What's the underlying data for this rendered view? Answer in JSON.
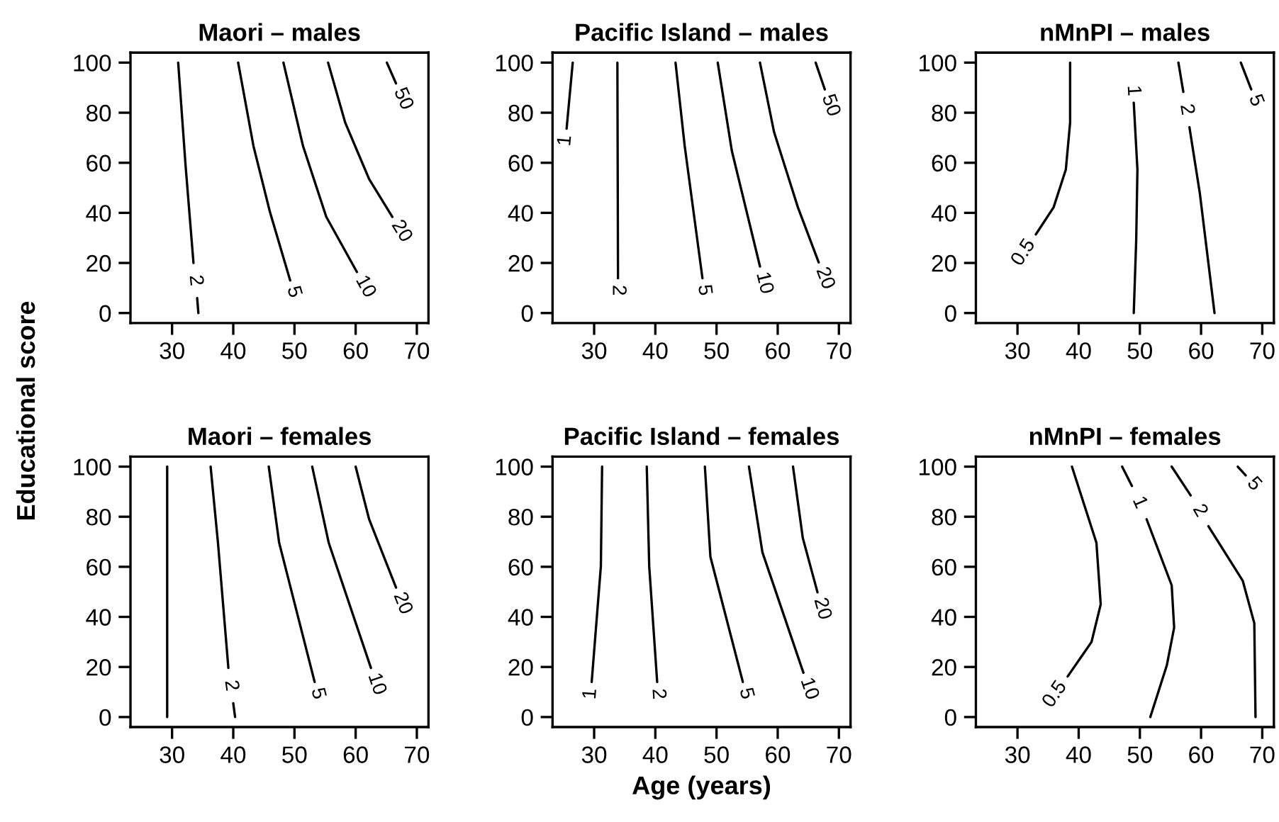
{
  "chart_data": [
    {
      "type": "line",
      "title": "Maori – males",
      "ylabel": "Educational score",
      "xlim": [
        23.2,
        71.9
      ],
      "ylim": [
        -4,
        104
      ],
      "xticks": [
        30,
        40,
        50,
        60,
        70
      ],
      "yticks": [
        0,
        20,
        40,
        60,
        80,
        100
      ],
      "grid": false,
      "annotations": [
        "2",
        "5",
        "10",
        "20",
        "50"
      ],
      "series": [
        {
          "color": "#000000",
          "x": [
            31.0,
            32.2,
            33.5,
            null,
            34.1,
            34.3
          ],
          "values": [
            100,
            59.1,
            20,
            null,
            6,
            0
          ]
        },
        {
          "color": "#000000",
          "x": [
            40.8,
            43.3,
            46.0,
            49.3
          ],
          "values": [
            100,
            66.7,
            40.3,
            13
          ]
        },
        {
          "color": "#000000",
          "x": [
            48.2,
            51.4,
            55.2,
            60.2
          ],
          "values": [
            100,
            66.7,
            38.4,
            16.4
          ]
        },
        {
          "color": "#000000",
          "x": [
            55.5,
            58.3,
            62.2,
            66.0
          ],
          "values": [
            100,
            76,
            53.5,
            38.4
          ]
        },
        {
          "color": "#000000",
          "x": [
            65.1,
            66.6
          ],
          "values": [
            100,
            91.7
          ]
        }
      ]
    },
    {
      "type": "line",
      "title": "Pacific Island – males",
      "xlim": [
        23.2,
        71.9
      ],
      "ylim": [
        -4,
        104
      ],
      "xticks": [
        30,
        40,
        50,
        60,
        70
      ],
      "yticks": [
        0,
        20,
        40,
        60,
        80,
        100
      ],
      "grid": false,
      "annotations": [
        "1",
        "2",
        "5",
        "10",
        "20",
        "50"
      ],
      "series": [
        {
          "color": "#000000",
          "x": [
            26.5,
            25.5
          ],
          "values": [
            100,
            73.6
          ]
        },
        {
          "color": "#000000",
          "x": [
            33.8,
            33.9
          ],
          "values": [
            100,
            13.9
          ]
        },
        {
          "color": "#000000",
          "x": [
            43.3,
            44.8,
            47.7
          ],
          "values": [
            100,
            66.7,
            13.9
          ]
        },
        {
          "color": "#000000",
          "x": [
            50.2,
            52.5,
            57.1
          ],
          "values": [
            100,
            64.8,
            18.6
          ]
        },
        {
          "color": "#000000",
          "x": [
            57.1,
            59.4,
            63.3,
            66.7
          ],
          "values": [
            100,
            72.3,
            42.2,
            20.2
          ]
        },
        {
          "color": "#000000",
          "x": [
            66.2,
            67.7
          ],
          "values": [
            100,
            89.3
          ]
        }
      ]
    },
    {
      "type": "line",
      "title": "nMnPI – males",
      "xlim": [
        23.2,
        71.9
      ],
      "ylim": [
        -4,
        104
      ],
      "xticks": [
        30,
        40,
        50,
        60,
        70
      ],
      "yticks": [
        0,
        20,
        40,
        60,
        80,
        100
      ],
      "grid": false,
      "annotations": [
        "0.5",
        "1",
        "2",
        "5"
      ],
      "series": [
        {
          "color": "#000000",
          "x": [
            38.6,
            38.6,
            37.9,
            35.9,
            33.0
          ],
          "values": [
            100,
            76,
            57.3,
            42.2,
            31.4
          ]
        },
        {
          "color": "#000000",
          "x": [
            49.0,
            49.4,
            49.6,
            49.0
          ],
          "values": [
            0,
            29,
            57.3,
            84
          ]
        },
        {
          "color": "#000000",
          "x": [
            56.3,
            57.1,
            null,
            58.1,
            59.8,
            62.2
          ],
          "values": [
            100,
            88.3,
            null,
            74.2,
            47.8,
            0
          ]
        },
        {
          "color": "#000000",
          "x": [
            66.5,
            68.2
          ],
          "values": [
            100,
            89.3
          ]
        }
      ]
    },
    {
      "type": "line",
      "title": "Maori – females",
      "xlim": [
        23.2,
        71.9
      ],
      "ylim": [
        -4,
        104
      ],
      "xticks": [
        30,
        40,
        50,
        60,
        70
      ],
      "yticks": [
        0,
        20,
        40,
        60,
        80,
        100
      ],
      "grid": false,
      "annotations": [
        "2",
        "5",
        "10",
        "20"
      ],
      "series": [
        {
          "color": "#000000",
          "x": [
            36.3,
            37.5,
            39.2,
            null,
            40.0,
            40.3
          ],
          "values": [
            100,
            69.6,
            19.6,
            null,
            5.5,
            0
          ]
        },
        {
          "color": "#000000",
          "x": [
            45.8,
            47.5,
            53.3
          ],
          "values": [
            100,
            69.6,
            14
          ]
        },
        {
          "color": "#000000",
          "x": [
            52.9,
            55.6,
            62.5
          ],
          "values": [
            100,
            69.6,
            19.6
          ]
        },
        {
          "color": "#000000",
          "x": [
            60.0,
            62.2,
            66.6
          ],
          "values": [
            100,
            79,
            51.7
          ]
        },
        {
          "color": "#000000",
          "x": [
            29.2,
            29.2
          ],
          "values": [
            100,
            0
          ]
        }
      ]
    },
    {
      "type": "line",
      "title": "Pacific Island – females",
      "xlabel": "Age (years)",
      "xlim": [
        23.2,
        71.9
      ],
      "ylim": [
        -4,
        104
      ],
      "xticks": [
        30,
        40,
        50,
        60,
        70
      ],
      "yticks": [
        0,
        20,
        40,
        60,
        80,
        100
      ],
      "grid": false,
      "annotations": [
        "1",
        "2",
        "5",
        "10",
        "20"
      ],
      "series": [
        {
          "color": "#000000",
          "x": [
            31.3,
            31.1,
            29.6
          ],
          "values": [
            100,
            60.2,
            14
          ]
        },
        {
          "color": "#000000",
          "x": [
            38.6,
            39.0,
            40.3
          ],
          "values": [
            100,
            60.2,
            14
          ]
        },
        {
          "color": "#000000",
          "x": [
            48.1,
            49.0,
            54.3
          ],
          "values": [
            100,
            64,
            14
          ]
        },
        {
          "color": "#000000",
          "x": [
            55.3,
            57.5,
            64.2
          ],
          "values": [
            100,
            65.8,
            17.7
          ]
        },
        {
          "color": "#000000",
          "x": [
            62.5,
            64.1,
            66.5
          ],
          "values": [
            100,
            71.5,
            49.8
          ]
        }
      ]
    },
    {
      "type": "line",
      "title": "nMnPI – females",
      "xlim": [
        23.2,
        71.9
      ],
      "ylim": [
        -4,
        104
      ],
      "xticks": [
        30,
        40,
        50,
        60,
        70
      ],
      "yticks": [
        0,
        20,
        40,
        60,
        80,
        100
      ],
      "grid": false,
      "annotations": [
        "0.5",
        "1",
        "2",
        "5"
      ],
      "series": [
        {
          "color": "#000000",
          "x": [
            38.9,
            42.9,
            43.6,
            42.1,
            38.2
          ],
          "values": [
            100,
            69.6,
            45,
            30,
            16.2
          ]
        },
        {
          "color": "#000000",
          "x": [
            47.1,
            48.7,
            null,
            51.1,
            55.2,
            55.6,
            54.4,
            51.7
          ],
          "values": [
            100,
            92.3,
            null,
            79,
            52.6,
            35.7,
            20.6,
            0
          ]
        },
        {
          "color": "#000000",
          "x": [
            55.2,
            58.3,
            null,
            61.2,
            66.8,
            68.7,
            68.9
          ],
          "values": [
            100,
            88.5,
            null,
            76.2,
            54.5,
            37.5,
            0
          ]
        },
        {
          "color": "#000000",
          "x": [
            66.0,
            67.3
          ],
          "values": [
            100,
            96.5
          ]
        }
      ]
    }
  ]
}
